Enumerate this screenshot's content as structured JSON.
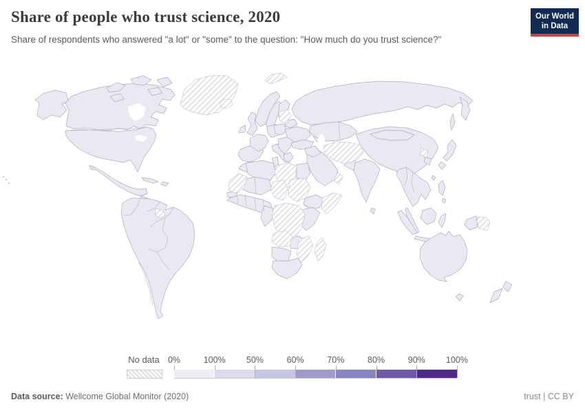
{
  "header": {
    "title": "Share of people who trust science, 2020",
    "subtitle": "Share of respondents who answered \"a lot\" or \"some\" to the question: \"How much do you trust science?\"",
    "logo": {
      "line1": "Our World",
      "line2": "in Data",
      "bg_color": "#122b52",
      "accent_color": "#dc3b2e"
    }
  },
  "legend": {
    "no_data_label": "No data",
    "labels": [
      "0%",
      "100%",
      "50%",
      "60%",
      "70%",
      "80%",
      "90%",
      "100%"
    ],
    "colors": [
      "#eeecf5",
      "#dbdbeb",
      "#c5c6e2",
      "#9f9ccd",
      "#8886c1",
      "#6e5aa8",
      "#522a8b"
    ]
  },
  "map": {
    "fill_color": "#e9e9f2",
    "border_color": "#adacbe",
    "no_data_pattern": "diagonal-hatch"
  },
  "footer": {
    "source_label": "Data source:",
    "source_value": "Wellcome Global Monitor (2020)",
    "right_text": "trust | CC BY"
  },
  "chart_data": {
    "type": "heatmap",
    "subtype": "choropleth-world-map",
    "title": "Share of people who trust science, 2020",
    "unit": "%",
    "legend_bin_labels": [
      "0%",
      "100%",
      "50%",
      "60%",
      "70%",
      "80%",
      "90%",
      "100%"
    ],
    "legend_bin_colors": [
      "#eeecf5",
      "#dbdbeb",
      "#c5c6e2",
      "#9f9ccd",
      "#8886c1",
      "#6e5aa8",
      "#522a8b"
    ],
    "observation": "All countries with data are rendered in the lightest purple shade; countries without data are shown with a white diagonal-hatch pattern",
    "no_data_regions_visible": [
      "Greenland",
      "Iceland",
      "Svalbard",
      "Baltic states",
      "Iran",
      "Afghanistan",
      "Oman",
      "North Korea",
      "Papua New Guinea",
      "French Guiana",
      "Western Sahara",
      "Mauritania",
      "Libya",
      "Chad",
      "Sudan",
      "Somalia",
      "Central African Republic",
      "Democratic Republic of Congo",
      "Angola",
      "Zimbabwe",
      "Mozambique",
      "Madagascar"
    ]
  }
}
